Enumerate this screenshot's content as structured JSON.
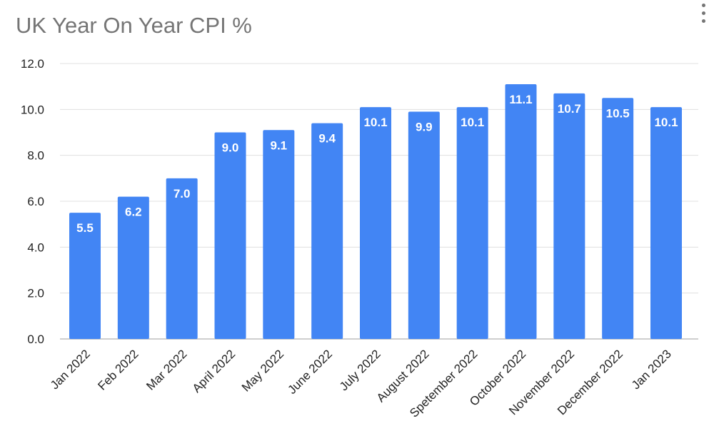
{
  "chart_data": {
    "type": "bar",
    "title": "UK Year On Year CPI %",
    "xlabel": "",
    "ylabel": "",
    "categories": [
      "Jan 2022",
      "Feb 2022",
      "Mar 2022",
      "April 2022",
      "May 2022",
      "June 2022",
      "July 2022",
      "August 2022",
      "Spetember 2022",
      "October 2022",
      "November 2022",
      "December 2022",
      "Jan 2023"
    ],
    "values": [
      5.5,
      6.2,
      7.0,
      9.0,
      9.1,
      9.4,
      10.1,
      9.9,
      10.1,
      11.1,
      10.7,
      10.5,
      10.1
    ],
    "data_labels": [
      "5.5",
      "6.2",
      "7.0",
      "9.0",
      "9.1",
      "9.4",
      "10.1",
      "9.9",
      "10.1",
      "11.1",
      "10.7",
      "10.5",
      "10.1"
    ],
    "yticks": [
      "0.0",
      "2.0",
      "4.0",
      "6.0",
      "8.0",
      "10.0",
      "12.0"
    ],
    "ylim": [
      0,
      12
    ],
    "grid": true,
    "legend": "none",
    "bar_color": "#4285f4",
    "grid_color": "#e0e0e0",
    "menu_icon": "more-vert-icon"
  }
}
